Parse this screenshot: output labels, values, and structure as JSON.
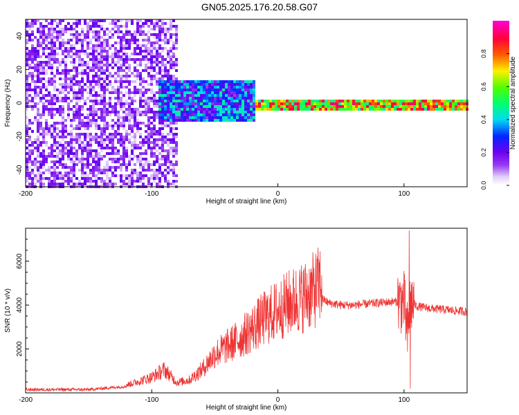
{
  "title": "GN05.2025.176.20.58.G07",
  "chart_data": [
    {
      "type": "heatmap",
      "xlabel": "Height of straight line (km)",
      "ylabel": "Frequency (Hz)",
      "xlim": [
        -200,
        150
      ],
      "ylim": [
        -50,
        50
      ],
      "xticks": [
        "-200",
        "-100",
        "0",
        "100"
      ],
      "xtick_values": [
        -200,
        -100,
        0,
        100
      ],
      "yticks": [
        "-40",
        "-20",
        "0",
        "20",
        "40"
      ],
      "ytick_values": [
        -40,
        -20,
        0,
        20,
        40
      ],
      "colorbar": {
        "label": "Normalized spectral amplitude",
        "range": [
          0,
          1
        ],
        "ticks": [
          "0.0",
          "0.2",
          "0.4",
          "0.6",
          "0.8"
        ],
        "tick_values": [
          0.0,
          0.2,
          0.4,
          0.6,
          0.8
        ],
        "colormap": "rainbow (white → purple → blue → cyan → green → yellow → red → magenta)"
      },
      "regions": [
        {
          "x_range": [
            -200,
            -80
          ],
          "freq_range": [
            -50,
            50
          ],
          "amplitude": 0.1,
          "description": "scattered low-amplitude noise"
        },
        {
          "x_range": [
            -95,
            -20
          ],
          "freq_range": [
            -10,
            15
          ],
          "amplitude": 0.3,
          "description": "dense band around 0 Hz"
        },
        {
          "x_range": [
            -20,
            150
          ],
          "freq_range": [
            -3,
            3
          ],
          "amplitude": 0.8,
          "description": "narrow high-amplitude line near 0 Hz"
        }
      ]
    },
    {
      "type": "line",
      "xlabel": "Height of straight line (km)",
      "ylabel": "SNR (10 * v/v)",
      "xlim": [
        -200,
        150
      ],
      "ylim": [
        0,
        7500
      ],
      "xticks": [
        "-200",
        "-100",
        "0",
        "100"
      ],
      "xtick_values": [
        -200,
        -100,
        0,
        100
      ],
      "yticks": [
        "2000",
        "4000",
        "6000"
      ],
      "ytick_values": [
        2000,
        4000,
        6000
      ],
      "color": "#ee3333",
      "trend": {
        "x": [
          -200,
          -150,
          -120,
          -100,
          -90,
          -80,
          -70,
          -60,
          -50,
          -40,
          -30,
          -20,
          -10,
          0,
          10,
          20,
          30,
          35,
          40,
          50,
          60,
          70,
          80,
          90,
          100,
          103,
          105,
          110,
          120,
          130,
          140,
          150
        ],
        "y": [
          150,
          150,
          300,
          600,
          900,
          400,
          500,
          900,
          1500,
          1800,
          2100,
          2500,
          2900,
          3200,
          3500,
          3700,
          4000,
          4300,
          4100,
          4000,
          4000,
          4050,
          4100,
          4150,
          4150,
          2500,
          4200,
          3950,
          3850,
          3800,
          3750,
          3700
        ]
      },
      "annotations": [
        {
          "x": 104,
          "y": 7400,
          "description": "spike maximum"
        },
        {
          "x": 105,
          "y": 200,
          "description": "dip minimum"
        }
      ]
    }
  ]
}
